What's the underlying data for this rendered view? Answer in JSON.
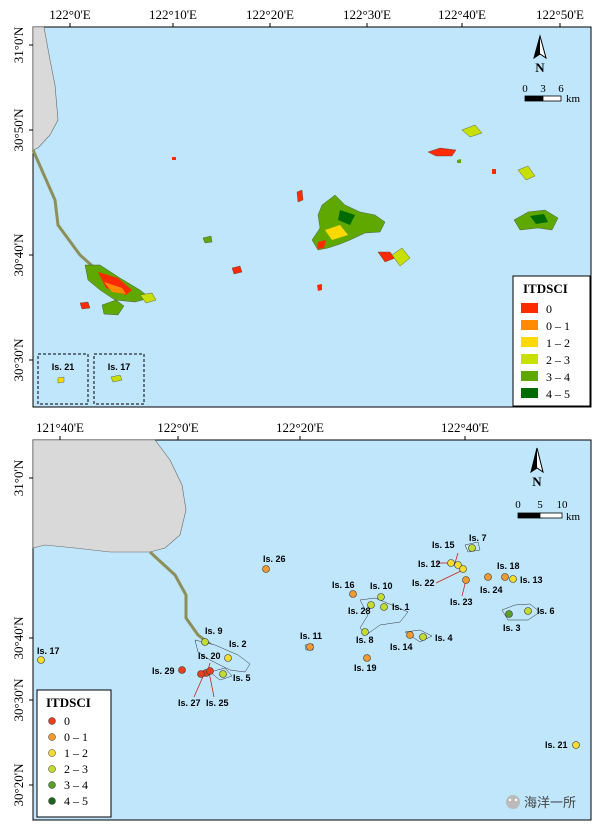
{
  "top_map": {
    "x_ticks": [
      "122°0'E",
      "122°10'E",
      "122°20'E",
      "122°30'E",
      "122°40'E",
      "122°50'E"
    ],
    "y_ticks": [
      "31°0'N",
      "30°50'N",
      "30°40'N",
      "30°30'N"
    ],
    "north_label": "N",
    "scale": {
      "labels": [
        "0",
        "3",
        "6"
      ],
      "unit": "km"
    },
    "insets": [
      {
        "label": "Is. 21"
      },
      {
        "label": "Is. 17"
      }
    ],
    "legend": {
      "title": "ITDSCI",
      "items": [
        {
          "label": "0",
          "color": "#ff2a00"
        },
        {
          "label": "0 – 1",
          "color": "#ff8c00"
        },
        {
          "label": "1 – 2",
          "color": "#ffd800"
        },
        {
          "label": "2 – 3",
          "color": "#c8e000"
        },
        {
          "label": "3 – 4",
          "color": "#5ea800"
        },
        {
          "label": "4 – 5",
          "color": "#006b00"
        }
      ]
    }
  },
  "bottom_map": {
    "x_ticks": [
      "121°40'E",
      "122°0'E",
      "122°20'E",
      "122°40'E"
    ],
    "y_ticks": [
      "31°0'N",
      "30°40'N",
      "30°30'N",
      "30°20'N"
    ],
    "north_label": "N",
    "scale": {
      "labels": [
        "0",
        "5",
        "10"
      ],
      "unit": "km"
    },
    "legend": {
      "title": "ITDSCI",
      "items": [
        {
          "label": "0",
          "color": "#e8401c"
        },
        {
          "label": "0 – 1",
          "color": "#f19a30"
        },
        {
          "label": "1 – 2",
          "color": "#f5dc30"
        },
        {
          "label": "2 – 3",
          "color": "#c4dc30"
        },
        {
          "label": "3 – 4",
          "color": "#5aa028"
        },
        {
          "label": "4 – 5",
          "color": "#1e641e"
        }
      ]
    },
    "islands": [
      {
        "id": "Is. 1",
        "label": "Is. 1",
        "color": "#c4dc30"
      },
      {
        "id": "Is. 2",
        "label": "Is. 2",
        "color": "#f5dc30"
      },
      {
        "id": "Is. 3",
        "label": "Is. 3",
        "color": "#5aa028"
      },
      {
        "id": "Is. 4",
        "label": "Is. 4",
        "color": "#c4dc30"
      },
      {
        "id": "Is. 5",
        "label": "Is. 5",
        "color": "#c4dc30"
      },
      {
        "id": "Is. 6",
        "label": "Is. 6",
        "color": "#c4dc30"
      },
      {
        "id": "Is. 7",
        "label": "Is. 7",
        "color": "#c4dc30"
      },
      {
        "id": "Is. 8",
        "label": "Is. 8",
        "color": "#c4dc30"
      },
      {
        "id": "Is. 9",
        "label": "Is. 9",
        "color": "#c4dc30"
      },
      {
        "id": "Is. 10",
        "label": "Is. 10",
        "color": "#c4dc30"
      },
      {
        "id": "Is. 11",
        "label": "Is. 11",
        "color": "#f19a30"
      },
      {
        "id": "Is. 12",
        "label": "Is. 12",
        "color": "#f5dc30"
      },
      {
        "id": "Is. 13",
        "label": "Is. 13",
        "color": "#f5dc30"
      },
      {
        "id": "Is. 14",
        "label": "Is. 14",
        "color": "#f19a30"
      },
      {
        "id": "Is. 15",
        "label": "Is. 15",
        "color": "#f5dc30"
      },
      {
        "id": "Is. 16",
        "label": "Is. 16",
        "color": "#f19a30"
      },
      {
        "id": "Is. 17",
        "label": "Is. 17",
        "color": "#f5dc30"
      },
      {
        "id": "Is. 18",
        "label": "Is. 18",
        "color": "#f19a30"
      },
      {
        "id": "Is. 19",
        "label": "Is. 19",
        "color": "#f19a30"
      },
      {
        "id": "Is. 20",
        "label": "Is. 20",
        "color": "#e8401c"
      },
      {
        "id": "Is. 21",
        "label": "Is. 21",
        "color": "#f5dc30"
      },
      {
        "id": "Is. 22",
        "label": "Is. 22",
        "color": "#f5dc30"
      },
      {
        "id": "Is. 23",
        "label": "Is. 23",
        "color": "#f19a30"
      },
      {
        "id": "Is. 24",
        "label": "Is. 24",
        "color": "#f19a30"
      },
      {
        "id": "Is. 25",
        "label": "Is. 25",
        "color": "#e8401c"
      },
      {
        "id": "Is. 26",
        "label": "Is. 26",
        "color": "#f19a30"
      },
      {
        "id": "Is. 27",
        "label": "Is. 27",
        "color": "#e8401c"
      },
      {
        "id": "Is. 28",
        "label": "Is. 28",
        "color": "#c4dc30"
      },
      {
        "id": "Is. 29",
        "label": "Is. 29",
        "color": "#e8401c"
      }
    ]
  },
  "watermark": {
    "text": "海洋一所"
  }
}
